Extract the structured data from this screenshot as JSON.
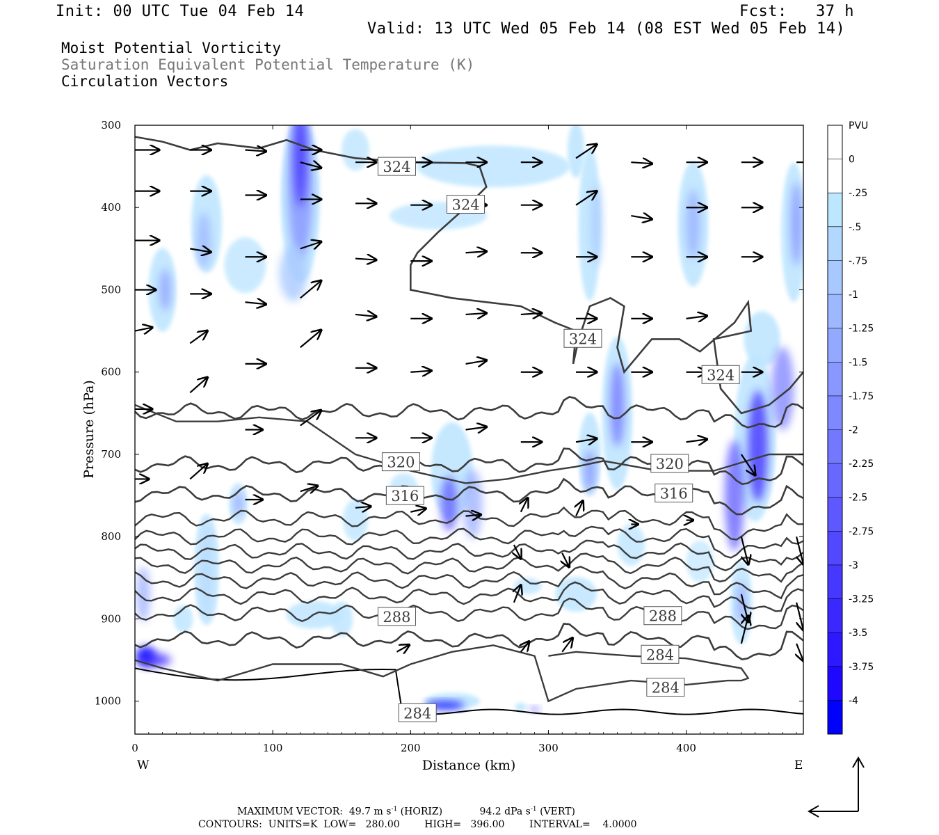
{
  "header": {
    "init": "Init: 00 UTC Tue 04 Feb 14",
    "fcst": "Fcst:   37 h",
    "valid": "Valid: 13 UTC Wed 05 Feb 14 (08 EST Wed 05 Feb 14)"
  },
  "fields": {
    "line1": "Moist Potential Vorticity",
    "line2": "Saturation Equivalent Potential Temperature (K)",
    "line3": "Circulation Vectors"
  },
  "colors": {
    "contour": "#3c3c3c",
    "vector": "#000000",
    "fill_light": "#bfe6ff",
    "fill_strong": "#0000ff"
  },
  "chart_data": {
    "type": "cross-section",
    "xlabel": "Distance (km)",
    "ylabel": "Pressure (hPa)",
    "xlim": [
      0,
      485
    ],
    "ylim": [
      1040,
      300
    ],
    "x_ticks": [
      0,
      100,
      200,
      300,
      400
    ],
    "y_ticks": [
      300,
      400,
      500,
      600,
      700,
      800,
      900,
      1000
    ],
    "x_end_labels": {
      "left": "W",
      "right": "E"
    },
    "colorbar": {
      "unit": "PVU",
      "levels": [
        "0",
        "-.25",
        "-.5",
        "-.75",
        "-1",
        "-1.25",
        "-1.5",
        "-1.75",
        "-2",
        "-2.25",
        "-2.5",
        "-2.75",
        "-3",
        "-3.25",
        "-3.5",
        "-3.75",
        "-4"
      ],
      "colors": [
        "#ffffff",
        "#ffffff",
        "#bde6ff",
        "#b3d8ff",
        "#a8c9ff",
        "#9eb8ff",
        "#93a8ff",
        "#8998ff",
        "#7e88ff",
        "#7378ff",
        "#6868ff",
        "#5d58ff",
        "#5248ff",
        "#4638ff",
        "#3a28ff",
        "#2d18ff",
        "#1f08ff",
        "#0000ff"
      ]
    },
    "contour_labels": [
      {
        "x": 190,
        "p": 350,
        "text": "324"
      },
      {
        "x": 240,
        "p": 396,
        "text": "324"
      },
      {
        "x": 325,
        "p": 559,
        "text": "324"
      },
      {
        "x": 425,
        "p": 603,
        "text": "324"
      },
      {
        "x": 193,
        "p": 709,
        "text": "320"
      },
      {
        "x": 388,
        "p": 711,
        "text": "320"
      },
      {
        "x": 196,
        "p": 750,
        "text": "316"
      },
      {
        "x": 391,
        "p": 747,
        "text": "316"
      },
      {
        "x": 190,
        "p": 897,
        "text": "288"
      },
      {
        "x": 383,
        "p": 896,
        "text": "288"
      },
      {
        "x": 381,
        "p": 943,
        "text": "284"
      },
      {
        "x": 385,
        "p": 983,
        "text": "284"
      },
      {
        "x": 205,
        "p": 1014,
        "text": "284"
      }
    ],
    "isentropes_K": [
      324,
      320,
      316,
      312,
      308,
      304,
      300,
      296,
      292,
      288,
      284,
      280
    ],
    "vector_scale": {
      "horiz_ms": 49.7,
      "vert_dpa_s": 94.2
    },
    "contour_info": {
      "units": "K",
      "low": 280.0,
      "high": 396.0,
      "interval": 4.0
    }
  },
  "footer": {
    "max_vector_label": "MAXIMUM VECTOR:",
    "horiz_value": "49.7 m s",
    "horiz_unit": "(HORIZ)",
    "vert_value": "94.2 dPa s",
    "vert_unit": "(VERT)",
    "exp": "-1",
    "contours_line": "CONTOURS:  UNITS=K  LOW=   280.00        HIGH=   396.00        INTERVAL=    4.0000"
  }
}
